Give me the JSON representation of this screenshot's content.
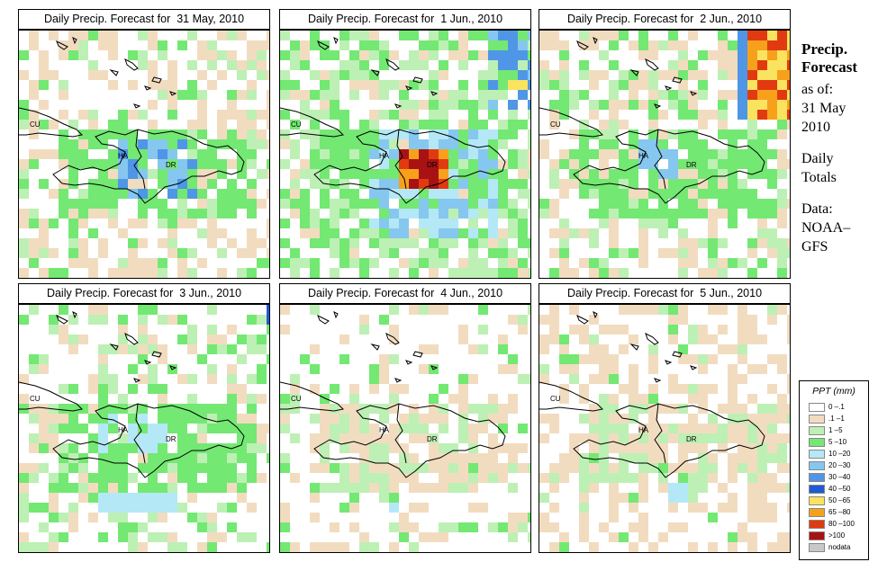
{
  "panels": [
    {
      "title": "Daily Precip. Forecast for  31 May, 2010"
    },
    {
      "title": "Daily Precip. Forecast for  1 Jun., 2010"
    },
    {
      "title": "Daily Precip. Forecast for  2 Jun., 2010"
    },
    {
      "title": "Daily Precip. Forecast for  3 Jun., 2010"
    },
    {
      "title": "Daily Precip. Forecast for  4 Jun., 2010"
    },
    {
      "title": "Daily Precip. Forecast for  5 Jun., 2010"
    }
  ],
  "map_labels": {
    "cuba": "CU",
    "haiti": "HA",
    "dominican_republic": "DR"
  },
  "side": {
    "title_line1": "Precip.",
    "title_line2": "Forecast",
    "asof": "as of:",
    "date1": "31 May",
    "date2": "2010",
    "daily1": "Daily",
    "daily2": "Totals",
    "data1": "Data:",
    "data2": "NOAA–",
    "data3": "GFS"
  },
  "legend": {
    "title": "PPT (mm)",
    "items": [
      {
        "label": "0 –.1",
        "color": "#ffffff"
      },
      {
        "label": ".1 –1",
        "color": "#f2dcc0"
      },
      {
        "label": "1 –5",
        "color": "#bdf0b4"
      },
      {
        "label": "5 –10",
        "color": "#73e873"
      },
      {
        "label": "10 –20",
        "color": "#b4e8f6"
      },
      {
        "label": "20 –30",
        "color": "#85c7ef"
      },
      {
        "label": "30 –40",
        "color": "#4f96e6"
      },
      {
        "label": "40 –50",
        "color": "#1f5ad6"
      },
      {
        "label": "50 –65",
        "color": "#fae35f"
      },
      {
        "label": "65 –80",
        "color": "#f7a01c"
      },
      {
        "label": "80 –100",
        "color": "#e23a10"
      },
      {
        "label": ">100",
        "color": "#a81212"
      },
      {
        "label": "nodata",
        "color": "#c8c8c8"
      }
    ]
  }
}
